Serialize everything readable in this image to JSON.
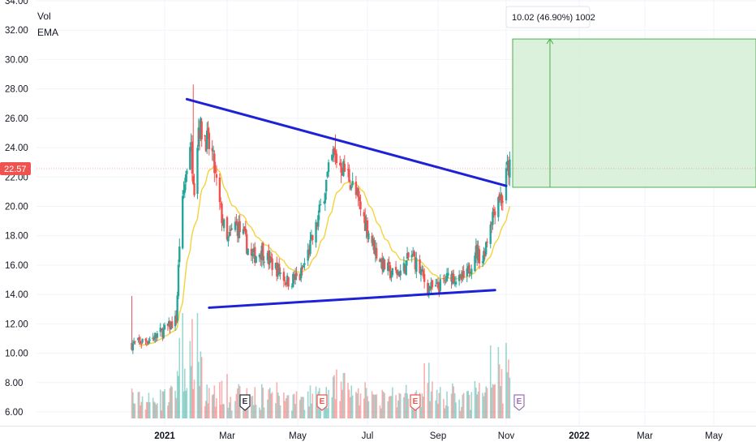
{
  "legend": {
    "vol_label": "Vol",
    "ema_label": "EMA"
  },
  "last_price": "22.57",
  "measure_label": "10.02 (46.90%) 1002",
  "y_ticks": [
    "34.00",
    "32.00",
    "30.00",
    "28.00",
    "26.00",
    "24.00",
    "22.00",
    "20.00",
    "18.00",
    "16.00",
    "14.00",
    "12.00",
    "10.00",
    "8.00",
    "6.00"
  ],
  "x_ticks": [
    {
      "label": "2021",
      "bold": true
    },
    {
      "label": "Mar",
      "bold": false
    },
    {
      "label": "May",
      "bold": false
    },
    {
      "label": "Jul",
      "bold": false
    },
    {
      "label": "Sep",
      "bold": false
    },
    {
      "label": "Nov",
      "bold": false
    },
    {
      "label": "2022",
      "bold": true
    },
    {
      "label": "Mar",
      "bold": false
    },
    {
      "label": "May",
      "bold": false
    }
  ],
  "earnings_markers": [
    "E",
    "E",
    "E",
    "E"
  ],
  "colors": {
    "up": "#26a69a",
    "down": "#ef5350",
    "ema": "#f5d23c",
    "trendline": "#1e22d6",
    "target_fill": "#d6efd6",
    "target_stroke": "#4caf50",
    "price_tag": "#ef5350",
    "grid": "#f0f3fa"
  },
  "chart_data": {
    "type": "candlestick",
    "ylim": [
      5.5,
      34.5
    ],
    "y_ticks": [
      6,
      8,
      10,
      12,
      14,
      16,
      18,
      20,
      22,
      24,
      26,
      28,
      30,
      32,
      34
    ],
    "trendlines": [
      {
        "from": [
          "2021-01-22",
          27.3
        ],
        "to": [
          "2021-11-01",
          21.4
        ]
      },
      {
        "from": [
          "2021-02-12",
          13.1
        ],
        "to": [
          "2021-10-22",
          14.3
        ]
      }
    ],
    "price_target": {
      "from": 21.3,
      "to": 31.4,
      "change": 10.02,
      "change_pct": 46.9,
      "bars": 1002
    },
    "ema_visible": true,
    "volume_visible": true
  }
}
